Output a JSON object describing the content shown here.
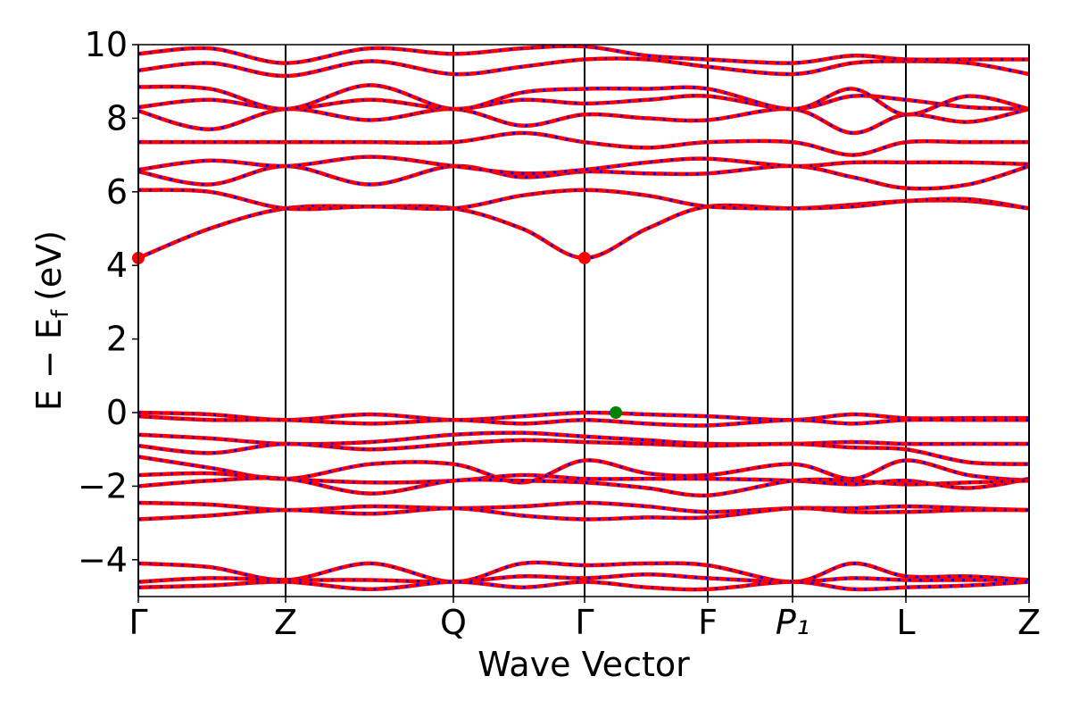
{
  "chart_data": {
    "type": "band",
    "xlabel": "Wave Vector",
    "ylabel": [
      "E − E",
      "f",
      "(eV)"
    ],
    "xlim": [
      0,
      9.98
    ],
    "ylim": [
      -5,
      10
    ],
    "xticks": [
      {
        "value": 0,
        "label": "Γ"
      },
      {
        "value": 1.65,
        "label": "Z"
      },
      {
        "value": 3.53,
        "label": "Q"
      },
      {
        "value": 5.0,
        "label": "Γ"
      },
      {
        "value": 6.38,
        "label": "F"
      },
      {
        "value": 7.33,
        "label": "P₁"
      },
      {
        "value": 8.6,
        "label": "L"
      },
      {
        "value": 9.98,
        "label": "Z"
      }
    ],
    "yticks": [
      {
        "value": -4,
        "label": "−4"
      },
      {
        "value": -2,
        "label": "−2"
      },
      0,
      2,
      4,
      6,
      8,
      10
    ],
    "line_color": "#ff0000",
    "dash_color": "#0000ff",
    "vline_color": "#000000",
    "x": [
      0,
      0.8,
      1.65,
      2.6,
      3.53,
      4.3,
      5.0,
      5.7,
      6.38,
      7.33,
      8.0,
      8.6,
      9.3,
      9.98
    ],
    "series": [
      {
        "values": [
          4.2,
          5.0,
          5.55,
          5.6,
          5.55,
          5.0,
          4.2,
          5.0,
          5.6,
          5.55,
          5.65,
          5.75,
          5.75,
          5.55
        ]
      },
      {
        "values": [
          6.05,
          6.0,
          5.55,
          5.6,
          5.55,
          5.9,
          6.05,
          5.9,
          5.6,
          5.55,
          5.6,
          5.75,
          5.8,
          5.55
        ]
      },
      {
        "values": [
          6.55,
          6.2,
          6.7,
          6.2,
          6.7,
          6.4,
          6.55,
          6.5,
          6.5,
          6.7,
          6.4,
          6.1,
          6.2,
          6.7
        ]
      },
      {
        "values": [
          6.6,
          6.85,
          6.7,
          6.95,
          6.7,
          6.5,
          6.6,
          6.8,
          6.9,
          6.7,
          6.8,
          6.8,
          6.8,
          6.75
        ]
      },
      {
        "values": [
          7.35,
          7.35,
          7.35,
          7.35,
          7.35,
          7.6,
          7.35,
          7.2,
          7.35,
          7.35,
          7.0,
          7.35,
          7.35,
          7.35
        ]
      },
      {
        "values": [
          8.2,
          7.7,
          8.25,
          7.95,
          8.25,
          7.8,
          8.1,
          8.0,
          7.95,
          8.25,
          7.6,
          8.1,
          7.9,
          8.25
        ]
      },
      {
        "values": [
          8.3,
          8.5,
          8.25,
          8.5,
          8.25,
          8.5,
          8.4,
          8.5,
          8.6,
          8.25,
          8.6,
          8.5,
          8.3,
          8.25
        ]
      },
      {
        "values": [
          8.85,
          8.8,
          8.25,
          8.9,
          8.25,
          8.7,
          8.8,
          8.8,
          8.8,
          8.25,
          8.8,
          8.1,
          8.6,
          8.25
        ]
      },
      {
        "values": [
          9.3,
          9.5,
          9.15,
          9.55,
          9.2,
          9.4,
          9.6,
          9.6,
          9.4,
          9.2,
          9.5,
          9.55,
          9.5,
          9.2
        ]
      },
      {
        "values": [
          9.75,
          9.9,
          9.5,
          9.9,
          9.75,
          9.9,
          9.95,
          9.7,
          9.6,
          9.5,
          9.7,
          9.6,
          9.6,
          9.6
        ]
      },
      {
        "values": [
          0.0,
          -0.05,
          -0.2,
          -0.05,
          -0.2,
          -0.1,
          0.0,
          -0.05,
          -0.1,
          -0.2,
          -0.05,
          -0.15,
          -0.15,
          -0.15
        ]
      },
      {
        "values": [
          -0.1,
          -0.2,
          -0.2,
          -0.3,
          -0.2,
          -0.3,
          -0.2,
          -0.3,
          -0.35,
          -0.2,
          -0.3,
          -0.2,
          -0.2,
          -0.2
        ]
      },
      {
        "values": [
          -0.6,
          -0.7,
          -0.85,
          -0.8,
          -0.6,
          -0.55,
          -0.65,
          -0.75,
          -0.85,
          -0.85,
          -0.8,
          -0.85,
          -0.85,
          -0.85
        ]
      },
      {
        "values": [
          -0.9,
          -1.1,
          -0.85,
          -1.0,
          -0.85,
          -0.75,
          -0.8,
          -0.85,
          -0.9,
          -0.85,
          -0.95,
          -1.0,
          -1.35,
          -1.4
        ]
      },
      {
        "values": [
          -1.2,
          -1.5,
          -1.8,
          -1.4,
          -1.4,
          -1.9,
          -1.3,
          -1.65,
          -1.7,
          -1.4,
          -1.8,
          -1.3,
          -1.7,
          -1.85
        ]
      },
      {
        "values": [
          -1.7,
          -1.65,
          -1.8,
          -1.9,
          -1.85,
          -1.7,
          -1.8,
          -1.8,
          -1.8,
          -1.85,
          -1.95,
          -1.85,
          -2.05,
          -1.8
        ]
      },
      {
        "values": [
          -2.0,
          -1.85,
          -1.8,
          -2.2,
          -1.85,
          -1.85,
          -1.9,
          -2.05,
          -2.25,
          -1.85,
          -1.85,
          -1.95,
          -1.9,
          -1.85
        ]
      },
      {
        "values": [
          -2.45,
          -2.5,
          -2.65,
          -2.55,
          -2.6,
          -2.55,
          -2.45,
          -2.55,
          -2.7,
          -2.6,
          -2.6,
          -2.55,
          -2.6,
          -2.65
        ]
      },
      {
        "values": [
          -2.9,
          -2.8,
          -2.65,
          -2.75,
          -2.6,
          -2.8,
          -2.9,
          -2.85,
          -2.85,
          -2.6,
          -2.7,
          -2.7,
          -2.65,
          -2.65
        ]
      },
      {
        "values": [
          -4.1,
          -4.2,
          -4.55,
          -4.1,
          -4.6,
          -4.1,
          -4.15,
          -4.1,
          -4.15,
          -4.6,
          -4.1,
          -4.45,
          -4.45,
          -4.55
        ]
      },
      {
        "values": [
          -4.6,
          -4.5,
          -4.55,
          -4.55,
          -4.6,
          -4.45,
          -4.5,
          -4.4,
          -4.5,
          -4.6,
          -4.5,
          -4.55,
          -4.55,
          -4.55
        ]
      },
      {
        "values": [
          -4.75,
          -4.7,
          -4.6,
          -4.8,
          -4.6,
          -4.75,
          -4.6,
          -4.75,
          -4.8,
          -4.6,
          -4.8,
          -4.75,
          -4.7,
          -4.6
        ]
      }
    ],
    "points": [
      {
        "x": 0,
        "y": 4.2,
        "color": "#ff0000"
      },
      {
        "x": 5.0,
        "y": 4.2,
        "color": "#ff0000"
      },
      {
        "x": 5.35,
        "y": 0.0,
        "color": "#008000"
      }
    ]
  }
}
